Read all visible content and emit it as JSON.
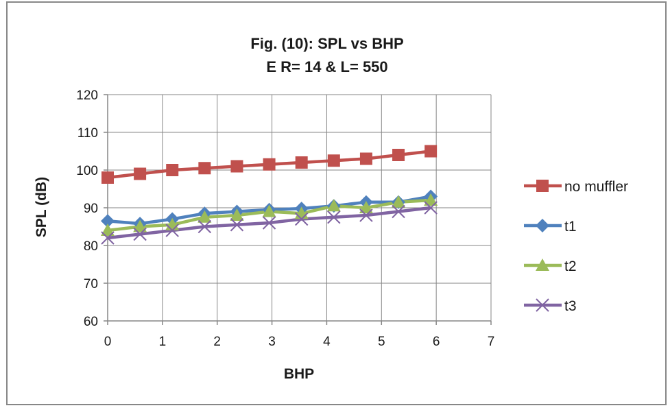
{
  "chart_data": {
    "type": "line",
    "title": [
      "Fig. (10): SPL vs BHP",
      "E R= 14 & L= 550"
    ],
    "xlabel": "BHP",
    "ylabel": "SPL (dB)",
    "xlim": [
      0,
      7
    ],
    "ylim": [
      60,
      120
    ],
    "xticks": [
      "0",
      "1",
      "2",
      "3",
      "4",
      "5",
      "6",
      "7"
    ],
    "yticks": [
      "60",
      "70",
      "80",
      "90",
      "100",
      "110",
      "120"
    ],
    "grid": true,
    "legend_position": "right",
    "series": [
      {
        "name": "no muffler",
        "color": "#C0504D",
        "marker": "square",
        "x": [
          0,
          0.59,
          1.18,
          1.77,
          2.36,
          2.95,
          3.54,
          4.13,
          4.72,
          5.31,
          5.9
        ],
        "y": [
          98,
          99,
          100,
          100.5,
          101,
          101.5,
          102,
          102.5,
          103,
          104,
          105
        ]
      },
      {
        "name": "t1",
        "color": "#4F81BD",
        "marker": "diamond",
        "x": [
          0,
          0.59,
          1.18,
          1.77,
          2.36,
          2.95,
          3.54,
          4.13,
          4.72,
          5.31,
          5.9
        ],
        "y": [
          86.5,
          85.8,
          87,
          88.5,
          89,
          89.5,
          89.8,
          90.5,
          91.5,
          91.5,
          93
        ]
      },
      {
        "name": "t2",
        "color": "#9BBB59",
        "marker": "triangle",
        "x": [
          0,
          0.59,
          1.18,
          1.77,
          2.36,
          2.95,
          3.54,
          4.13,
          4.72,
          5.31,
          5.9
        ],
        "y": [
          84,
          85,
          85.5,
          87.5,
          88,
          89,
          88.5,
          90.5,
          90,
          91.5,
          92
        ]
      },
      {
        "name": "t3",
        "color": "#8064A2",
        "marker": "x",
        "x": [
          0,
          0.59,
          1.18,
          1.77,
          2.36,
          2.95,
          3.54,
          4.13,
          4.72,
          5.31,
          5.9
        ],
        "y": [
          82,
          83,
          84,
          85,
          85.5,
          86,
          87,
          87.5,
          88,
          89,
          90
        ]
      }
    ]
  }
}
